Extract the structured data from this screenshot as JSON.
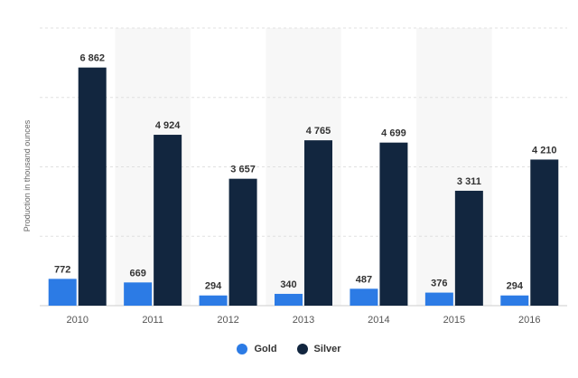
{
  "chart_data": {
    "type": "bar",
    "categories": [
      "2010",
      "2011",
      "2012",
      "2013",
      "2014",
      "2015",
      "2016"
    ],
    "series": [
      {
        "name": "Gold",
        "color": "#2c7be5",
        "values": [
          772,
          669,
          294,
          340,
          487,
          376,
          294
        ],
        "labels": [
          "772",
          "669",
          "294",
          "340",
          "487",
          "376",
          "294"
        ]
      },
      {
        "name": "Silver",
        "color": "#12263f",
        "values": [
          6862,
          4924,
          3657,
          4765,
          4699,
          3311,
          4210
        ],
        "labels": [
          "6 862",
          "4 924",
          "3 657",
          "4 765",
          "4 699",
          "3 311",
          "4 210"
        ]
      }
    ],
    "ylabel": "Production in thousand ounces",
    "ylim": [
      0,
      8000
    ],
    "grid": true,
    "legend_position": "bottom-center"
  }
}
